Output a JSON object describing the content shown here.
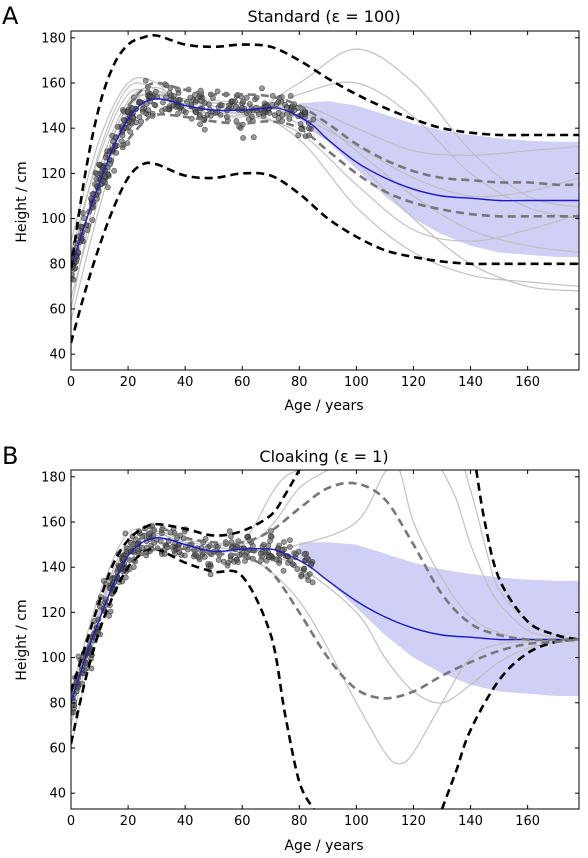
{
  "chart_data": [
    {
      "type": "line",
      "panel_label": "A",
      "title": "Standard (ε = 100)",
      "xlabel": "Age / years",
      "ylabel": "Height / cm",
      "xlim": [
        0,
        178
      ],
      "ylim": [
        33,
        183
      ],
      "xticks": [
        0,
        20,
        40,
        60,
        80,
        100,
        120,
        140,
        160
      ],
      "yticks": [
        40,
        60,
        80,
        100,
        120,
        140,
        160,
        180
      ],
      "grid": false,
      "legend": "none",
      "colors": {
        "mean": "#1a1acc",
        "band": "#c8c8f5",
        "samples": "#bbbbbb",
        "outer_bounds": "#000000",
        "inner_bounds": "#777777",
        "points": "#555555"
      },
      "band": {
        "x": [
          80,
          90,
          100,
          110,
          120,
          130,
          140,
          150,
          160,
          170,
          178
        ],
        "upper": [
          151,
          152,
          150,
          146,
          142,
          139,
          137,
          135.5,
          134.5,
          134,
          134
        ],
        "lower": [
          144,
          134,
          122,
          110,
          100,
          93,
          88,
          85,
          84,
          83,
          83
        ]
      },
      "series": [
        {
          "role": "mean",
          "style": "solid",
          "x": [
            0,
            5,
            10,
            15,
            20,
            25,
            30,
            35,
            40,
            50,
            60,
            70,
            75,
            80,
            85,
            90,
            100,
            110,
            120,
            130,
            140,
            150,
            160,
            170,
            178
          ],
          "y": [
            78,
            98,
            116,
            132,
            144,
            151,
            153,
            152,
            150,
            148,
            148,
            149,
            148,
            145,
            141,
            135,
            125,
            118,
            113,
            110,
            109,
            108,
            108,
            108,
            108
          ]
        },
        {
          "role": "bound-outer-upper",
          "style": "dashed",
          "x": [
            0,
            5,
            10,
            15,
            20,
            25,
            30,
            40,
            50,
            60,
            70,
            80,
            90,
            100,
            110,
            120,
            130,
            140,
            150,
            160,
            170,
            178
          ],
          "y": [
            78,
            120,
            150,
            168,
            177,
            180,
            181,
            177,
            176,
            177,
            176,
            170,
            162,
            155,
            149,
            144,
            140,
            138,
            137,
            137,
            137,
            137
          ]
        },
        {
          "role": "bound-outer-lower",
          "style": "dashed",
          "x": [
            0,
            5,
            10,
            15,
            20,
            25,
            30,
            40,
            50,
            60,
            70,
            80,
            90,
            100,
            110,
            120,
            130,
            140,
            150,
            160,
            170,
            178
          ],
          "y": [
            45,
            68,
            88,
            105,
            118,
            124,
            124,
            119,
            118,
            120,
            119,
            111,
            100,
            92,
            86,
            83,
            81,
            80,
            80,
            80,
            80,
            80
          ]
        },
        {
          "role": "bound-inner-upper",
          "style": "dashed",
          "x": [
            20,
            25,
            30,
            40,
            50,
            60,
            70,
            80,
            90,
            100,
            110,
            120,
            130,
            140,
            150,
            160,
            170,
            178
          ],
          "y": [
            150,
            157,
            160,
            157,
            155,
            155,
            154,
            150,
            142,
            133,
            126,
            121,
            118,
            117,
            116,
            116,
            115,
            115
          ]
        },
        {
          "role": "bound-inner-lower",
          "style": "dashed",
          "x": [
            20,
            25,
            30,
            40,
            50,
            60,
            70,
            80,
            90,
            100,
            110,
            120,
            130,
            140,
            150,
            160,
            170,
            178
          ],
          "y": [
            135,
            142,
            146,
            145,
            143,
            142,
            143,
            140,
            130,
            120,
            112,
            107,
            104,
            102,
            101,
            101,
            101,
            101
          ]
        }
      ],
      "samples": [
        {
          "x": [
            0,
            10,
            20,
            30,
            40,
            60,
            80,
            100,
            120,
            140,
            160,
            178
          ],
          "y": [
            60,
            118,
            150,
            155,
            152,
            148,
            148,
            130,
            110,
            95,
            88,
            85
          ]
        },
        {
          "x": [
            0,
            10,
            20,
            30,
            40,
            60,
            80,
            100,
            120,
            140,
            160,
            178
          ],
          "y": [
            70,
            122,
            152,
            158,
            150,
            145,
            155,
            160,
            145,
            120,
            105,
            100
          ]
        },
        {
          "x": [
            0,
            10,
            20,
            30,
            40,
            60,
            80,
            100,
            120,
            140,
            160,
            178
          ],
          "y": [
            90,
            135,
            160,
            160,
            148,
            146,
            138,
            115,
            95,
            90,
            95,
            102
          ]
        },
        {
          "x": [
            0,
            10,
            20,
            30,
            40,
            60,
            80,
            100,
            120,
            140,
            160,
            178
          ],
          "y": [
            65,
            110,
            148,
            156,
            152,
            150,
            142,
            125,
            100,
            80,
            70,
            68
          ]
        },
        {
          "x": [
            0,
            10,
            20,
            30,
            40,
            60,
            80,
            100,
            120,
            140,
            160,
            178
          ],
          "y": [
            80,
            130,
            158,
            157,
            150,
            147,
            150,
            140,
            130,
            128,
            130,
            132
          ]
        },
        {
          "x": [
            0,
            10,
            20,
            30,
            40,
            60,
            80,
            100,
            120,
            140,
            160,
            178
          ],
          "y": [
            55,
            105,
            145,
            154,
            153,
            151,
            145,
            132,
            118,
            110,
            112,
            118
          ]
        },
        {
          "x": [
            0,
            10,
            20,
            30,
            40,
            60,
            80,
            100,
            120,
            140,
            160,
            178
          ],
          "y": [
            85,
            128,
            155,
            155,
            149,
            146,
            160,
            175,
            160,
            130,
            110,
            105
          ]
        },
        {
          "x": [
            0,
            10,
            20,
            30,
            40,
            60,
            80,
            100,
            120,
            140,
            160,
            178
          ],
          "y": [
            75,
            118,
            150,
            155,
            152,
            149,
            135,
            105,
            85,
            75,
            72,
            70
          ]
        }
      ]
    },
    {
      "type": "line",
      "panel_label": "B",
      "title": "Cloaking (ε = 1)",
      "xlabel": "Age / years",
      "ylabel": "Height / cm",
      "xlim": [
        0,
        178
      ],
      "ylim": [
        33,
        183
      ],
      "xticks": [
        0,
        20,
        40,
        60,
        80,
        100,
        120,
        140,
        160
      ],
      "yticks": [
        40,
        60,
        80,
        100,
        120,
        140,
        160,
        180
      ],
      "grid": false,
      "legend": "none",
      "colors": {
        "mean": "#1a1acc",
        "band": "#c8c8f5",
        "samples": "#bbbbbb",
        "outer_bounds": "#000000",
        "inner_bounds": "#777777",
        "points": "#555555"
      },
      "band": {
        "x": [
          80,
          90,
          100,
          110,
          120,
          130,
          140,
          150,
          160,
          170,
          178
        ],
        "upper": [
          151,
          151,
          150,
          146,
          142,
          139,
          137,
          135.5,
          134.5,
          134,
          134
        ],
        "lower": [
          144,
          134,
          122,
          110,
          100,
          93,
          88,
          85,
          84,
          83,
          83
        ]
      },
      "series": [
        {
          "role": "mean",
          "style": "solid",
          "x": [
            0,
            5,
            10,
            15,
            20,
            25,
            30,
            35,
            40,
            50,
            60,
            70,
            75,
            80,
            85,
            90,
            100,
            110,
            120,
            130,
            140,
            150,
            160,
            170,
            178
          ],
          "y": [
            80,
            100,
            117,
            133,
            145,
            151,
            153,
            152,
            150,
            147,
            148,
            148,
            146,
            143,
            139,
            134,
            125,
            118,
            113,
            110,
            109,
            108,
            108,
            108,
            108
          ]
        },
        {
          "role": "bound-outer-upper",
          "style": "dashed",
          "x": [
            0,
            5,
            10,
            15,
            20,
            25,
            30,
            40,
            50,
            60,
            70,
            75,
            80
          ],
          "y": [
            85,
            105,
            125,
            142,
            152,
            157,
            159,
            157,
            154,
            156,
            163,
            172,
            183
          ]
        },
        {
          "role": "bound-outer-lower",
          "style": "dashed",
          "x": [
            0,
            5,
            10,
            15,
            20,
            25,
            30,
            40,
            50,
            60,
            70,
            75,
            80,
            85
          ],
          "y": [
            62,
            90,
            112,
            128,
            140,
            146,
            148,
            142,
            138,
            136,
            110,
            75,
            45,
            33
          ]
        },
        {
          "role": "bound-outer-right-a",
          "style": "dashed",
          "x": [
            130,
            135,
            140,
            150,
            160,
            170,
            178
          ],
          "y": [
            33,
            50,
            68,
            90,
            102,
            107,
            108
          ]
        },
        {
          "role": "bound-outer-right-b",
          "style": "dashed",
          "x": [
            142,
            145,
            150,
            160,
            170,
            178
          ],
          "y": [
            183,
            160,
            135,
            116,
            110,
            108
          ]
        },
        {
          "role": "bound-inner-upper",
          "style": "dashed",
          "x": [
            20,
            30,
            40,
            50,
            60,
            70,
            80,
            90,
            100,
            110,
            120,
            130,
            140,
            150,
            160,
            170,
            178
          ],
          "y": [
            148,
            157,
            153,
            151,
            151,
            156,
            166,
            175,
            177,
            170,
            150,
            128,
            115,
            110,
            108,
            108,
            108
          ]
        },
        {
          "role": "bound-inner-lower",
          "style": "dashed",
          "x": [
            20,
            30,
            40,
            50,
            60,
            70,
            80,
            90,
            100,
            110,
            120,
            130,
            140,
            150,
            160,
            170,
            178
          ],
          "y": [
            143,
            148,
            148,
            146,
            145,
            138,
            120,
            100,
            86,
            82,
            85,
            92,
            98,
            103,
            106,
            107,
            108
          ]
        }
      ],
      "samples": [
        {
          "x": [
            0,
            10,
            20,
            30,
            40,
            60,
            70,
            80,
            90
          ],
          "y": [
            60,
            118,
            150,
            155,
            151,
            150,
            158,
            175,
            183
          ]
        },
        {
          "x": [
            0,
            10,
            20,
            30,
            40,
            60,
            80,
            100,
            110,
            115,
            120,
            130,
            140,
            150,
            160,
            170,
            178
          ],
          "y": [
            70,
            120,
            150,
            155,
            150,
            146,
            125,
            80,
            58,
            53,
            58,
            80,
            100,
            106,
            107,
            108,
            108
          ]
        },
        {
          "x": [
            0,
            10,
            20,
            30,
            40,
            60,
            80,
            100,
            110,
            115,
            120,
            130,
            140,
            150,
            160,
            170,
            178
          ],
          "y": [
            85,
            128,
            155,
            154,
            148,
            147,
            150,
            160,
            182,
            183,
            160,
            135,
            118,
            111,
            108,
            108,
            108
          ]
        },
        {
          "x": [
            0,
            10,
            20,
            30,
            40,
            60,
            80,
            100,
            110,
            120,
            130,
            140,
            150,
            160,
            170,
            178
          ],
          "y": [
            75,
            122,
            152,
            156,
            152,
            149,
            140,
            120,
            100,
            85,
            80,
            88,
            98,
            104,
            107,
            108
          ]
        },
        {
          "x": [
            60,
            65,
            70,
            75,
            80
          ],
          "y": [
            150,
            160,
            172,
            180,
            183
          ]
        },
        {
          "x": [
            130,
            135,
            140,
            145,
            150,
            160,
            170,
            178
          ],
          "y": [
            183,
            170,
            150,
            135,
            124,
            112,
            109,
            108
          ]
        },
        {
          "x": [
            138,
            142,
            146,
            150,
            160,
            170,
            178
          ],
          "y": [
            183,
            165,
            145,
            130,
            116,
            110,
            108
          ]
        }
      ]
    }
  ]
}
